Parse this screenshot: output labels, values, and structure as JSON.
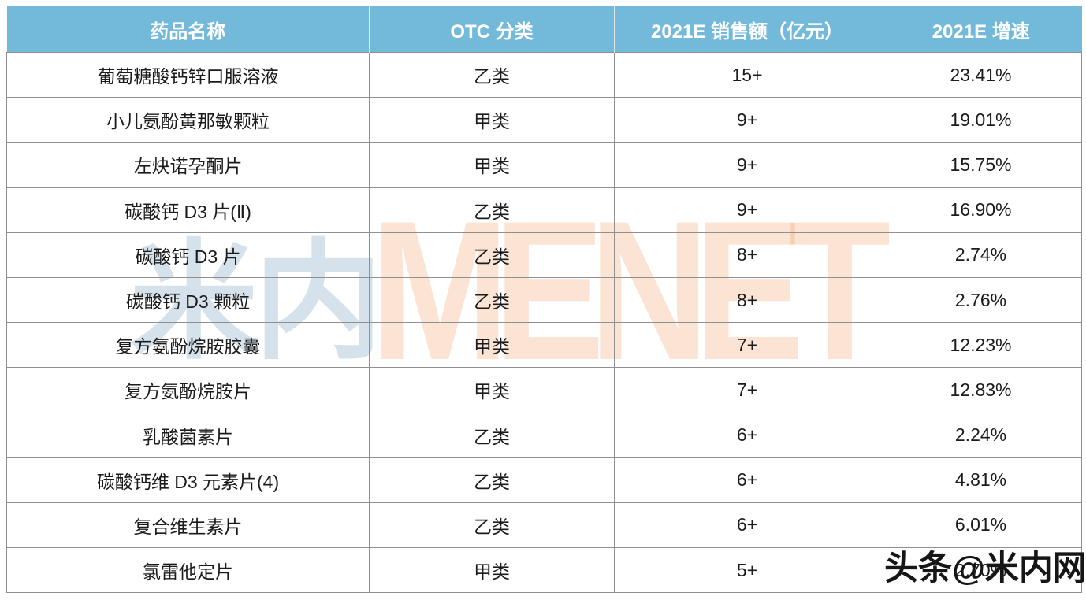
{
  "chart_data": {
    "type": "table",
    "columns": [
      "药品名称",
      "OTC 分类",
      "2021E 销售额（亿元）",
      "2021E 增速"
    ],
    "rows": [
      [
        "葡萄糖酸钙锌口服溶液",
        "乙类",
        "15+",
        "23.41%"
      ],
      [
        "小儿氨酚黄那敏颗粒",
        "甲类",
        "9+",
        "19.01%"
      ],
      [
        "左炔诺孕酮片",
        "甲类",
        "9+",
        "15.75%"
      ],
      [
        "碳酸钙 D3 片(Ⅱ)",
        "乙类",
        "9+",
        "16.90%"
      ],
      [
        "碳酸钙 D3 片",
        "乙类",
        "8+",
        "2.74%"
      ],
      [
        "碳酸钙 D3 颗粒",
        "乙类",
        "8+",
        "2.76%"
      ],
      [
        "复方氨酚烷胺胶囊",
        "甲类",
        "7+",
        "12.23%"
      ],
      [
        "复方氨酚烷胺片",
        "甲类",
        "7+",
        "12.83%"
      ],
      [
        "乳酸菌素片",
        "乙类",
        "6+",
        "2.24%"
      ],
      [
        "碳酸钙维 D3 元素片(4)",
        "乙类",
        "6+",
        "4.81%"
      ],
      [
        "复合维生素片",
        "乙类",
        "6+",
        "6.01%"
      ],
      [
        "氯雷他定片",
        "甲类",
        "5+",
        "2.70%"
      ]
    ],
    "title": "",
    "legend": "none",
    "grid": "on"
  },
  "watermarks": {
    "center_cn": "米内",
    "center_en": "MENET",
    "bottom_right": "头条@米内网"
  },
  "colors": {
    "header_bg": "#73bada",
    "header_text": "#ffffff",
    "row_bg": "#ffffff",
    "border": "#909090",
    "cell_text": "#1b1b1b",
    "watermark_cn": "#cfdde7",
    "watermark_en": "#f9ddc8",
    "bottom_watermark": "#161616"
  }
}
